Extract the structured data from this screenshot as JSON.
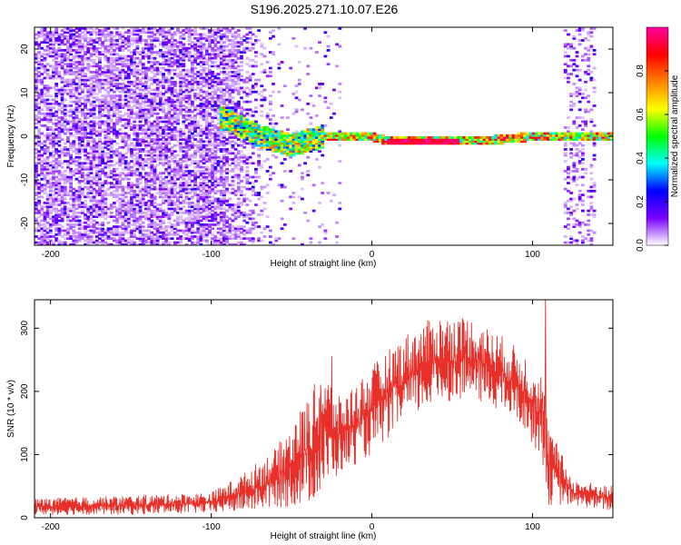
{
  "title": "S196.2025.271.10.07.E26",
  "chart_data": [
    {
      "type": "heatmap",
      "name": "spectrogram",
      "xlabel": "Height of straight line (km)",
      "ylabel": "Frequency (Hz)",
      "xlim": [
        -210,
        150
      ],
      "ylim": [
        -25,
        25
      ],
      "x_ticks": [
        -200,
        -100,
        0,
        100
      ],
      "y_ticks": [
        -20,
        -10,
        0,
        10,
        20
      ],
      "ridge": [
        {
          "x": -90,
          "y": 4
        },
        {
          "x": -80,
          "y": 2
        },
        {
          "x": -70,
          "y": 0
        },
        {
          "x": -60,
          "y": -1
        },
        {
          "x": -50,
          "y": -2
        },
        {
          "x": -40,
          "y": -1
        },
        {
          "x": -30,
          "y": 0
        },
        {
          "x": -20,
          "y": 0
        },
        {
          "x": 0,
          "y": 0
        },
        {
          "x": 10,
          "y": -1
        },
        {
          "x": 50,
          "y": -1
        },
        {
          "x": 70,
          "y": -1
        },
        {
          "x": 100,
          "y": 0
        },
        {
          "x": 150,
          "y": 0
        }
      ],
      "colorbar": {
        "label": "Normalized spectral amplitude",
        "range": [
          0.0,
          1.0
        ],
        "ticks": [
          0.0,
          0.2,
          0.4,
          0.6,
          0.8
        ],
        "colors": [
          "#ffffff",
          "#7a00ff",
          "#0000ff",
          "#00ffff",
          "#00ff00",
          "#ffff00",
          "#ff8000",
          "#ff0000",
          "#ff00a0"
        ]
      }
    },
    {
      "type": "line",
      "name": "snr",
      "xlabel": "Height of straight line (km)",
      "ylabel": "SNR (10 * v/v)",
      "xlim": [
        -210,
        150
      ],
      "ylim": [
        0,
        345
      ],
      "x_ticks": [
        -200,
        -100,
        0,
        100
      ],
      "y_ticks": [
        0,
        100,
        200,
        300
      ],
      "color": "#e8302a",
      "envelope": [
        {
          "x": -210,
          "low": 5,
          "high": 30
        },
        {
          "x": -150,
          "low": 5,
          "high": 35
        },
        {
          "x": -100,
          "low": 8,
          "high": 40
        },
        {
          "x": -80,
          "low": 10,
          "high": 70
        },
        {
          "x": -60,
          "low": 15,
          "high": 110
        },
        {
          "x": -40,
          "low": 20,
          "high": 190
        },
        {
          "x": -30,
          "low": 40,
          "high": 240
        },
        {
          "x": -20,
          "low": 70,
          "high": 190
        },
        {
          "x": 0,
          "low": 100,
          "high": 240
        },
        {
          "x": 20,
          "low": 150,
          "high": 290
        },
        {
          "x": 40,
          "low": 180,
          "high": 320
        },
        {
          "x": 60,
          "low": 190,
          "high": 320
        },
        {
          "x": 80,
          "low": 170,
          "high": 290
        },
        {
          "x": 95,
          "low": 140,
          "high": 260
        },
        {
          "x": 106,
          "low": 90,
          "high": 230
        },
        {
          "x": 110,
          "low": 20,
          "high": 150
        },
        {
          "x": 125,
          "low": 20,
          "high": 60
        },
        {
          "x": 150,
          "low": 10,
          "high": 50
        }
      ],
      "spikes": [
        {
          "x": 108,
          "y": 345
        },
        {
          "x": 106,
          "y": 180
        },
        {
          "x": -25,
          "y": 255
        },
        {
          "x": -32,
          "y": 210
        }
      ]
    }
  ]
}
